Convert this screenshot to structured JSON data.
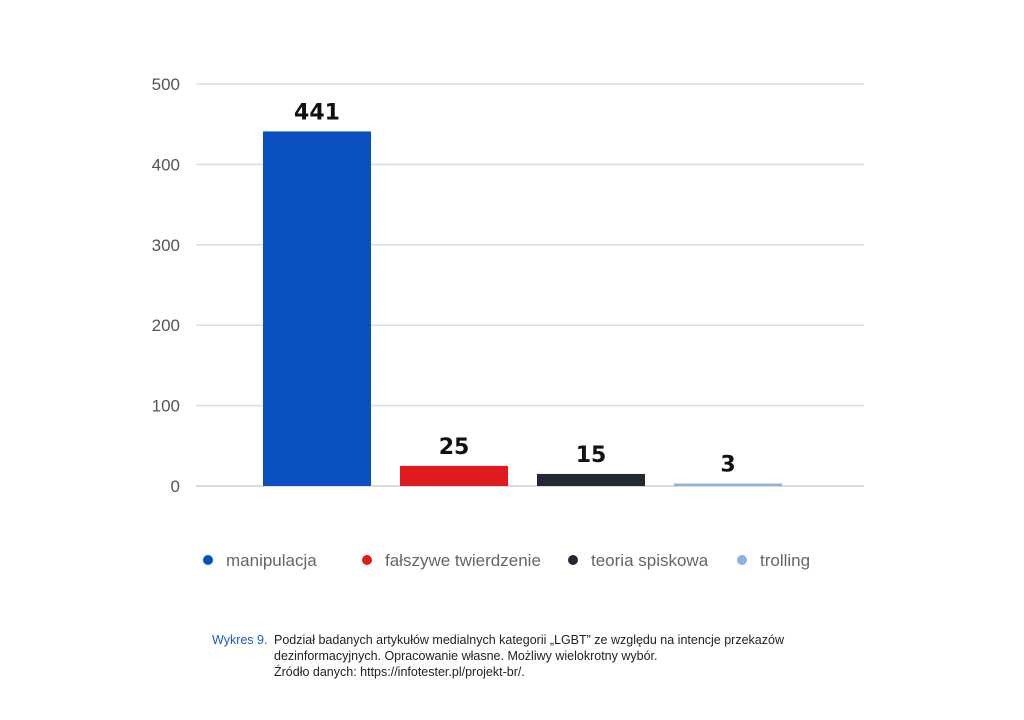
{
  "chart_data": {
    "type": "bar",
    "categories": [
      "manipulacja",
      "fałszywe twierdzenie",
      "teoria spiskowa",
      "trolling"
    ],
    "values": [
      441,
      25,
      15,
      3
    ],
    "colors": [
      "#0b50c0",
      "#e01a1f",
      "#1f2a36",
      "#8fb1e3"
    ],
    "data_labels": [
      "441",
      "25",
      "15",
      "3"
    ],
    "ylim": [
      0,
      500
    ],
    "yticks": [
      0,
      100,
      200,
      300,
      400,
      500
    ],
    "grid": true,
    "legend_position": "bottom",
    "title": "",
    "xlabel": "",
    "ylabel": ""
  },
  "caption": {
    "tag": "Wykres 9.",
    "lines": [
      "Podział badanych artykułów medialnych kategorii „LGBT” ze względu na intencje przekazów",
      "dezinformacyjnych. Opracowanie własne. Możliwy wielokrotny wybór.",
      "Źródło danych: https://infotester.pl/projekt-br/."
    ]
  }
}
